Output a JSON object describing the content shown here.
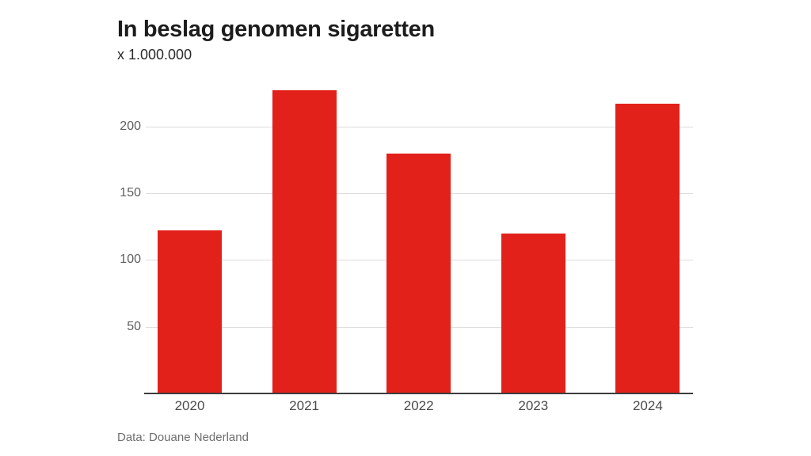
{
  "header": {
    "title": "In beslag genomen sigaretten",
    "subtitle": "x 1.000.000"
  },
  "footer": {
    "source": "Data: Douane Nederland"
  },
  "colors": {
    "background": "#ffffff",
    "bar": "#e2211a",
    "gridline": "#dcdcdc",
    "axis_line": "#3d3d3d",
    "title_text": "#1c1c1c",
    "subtitle_text": "#2a2a2a",
    "ytick_text": "#606060",
    "xtick_text": "#4a4a4a",
    "source_text": "#6e6e6e"
  },
  "chart_data": {
    "type": "bar",
    "title": "In beslag genomen sigaretten",
    "subtitle": "x 1.000.000",
    "source": "Data: Douane Nederland",
    "categories": [
      "2020",
      "2021",
      "2022",
      "2023",
      "2024"
    ],
    "values": [
      122,
      227,
      180,
      120,
      217
    ],
    "xlabel": "",
    "ylabel": "x 1.000.000",
    "yticks": [
      50,
      100,
      150,
      200
    ],
    "ylim": [
      0,
      235
    ],
    "grid": true,
    "legend": false,
    "bar_color": "#e2211a"
  }
}
